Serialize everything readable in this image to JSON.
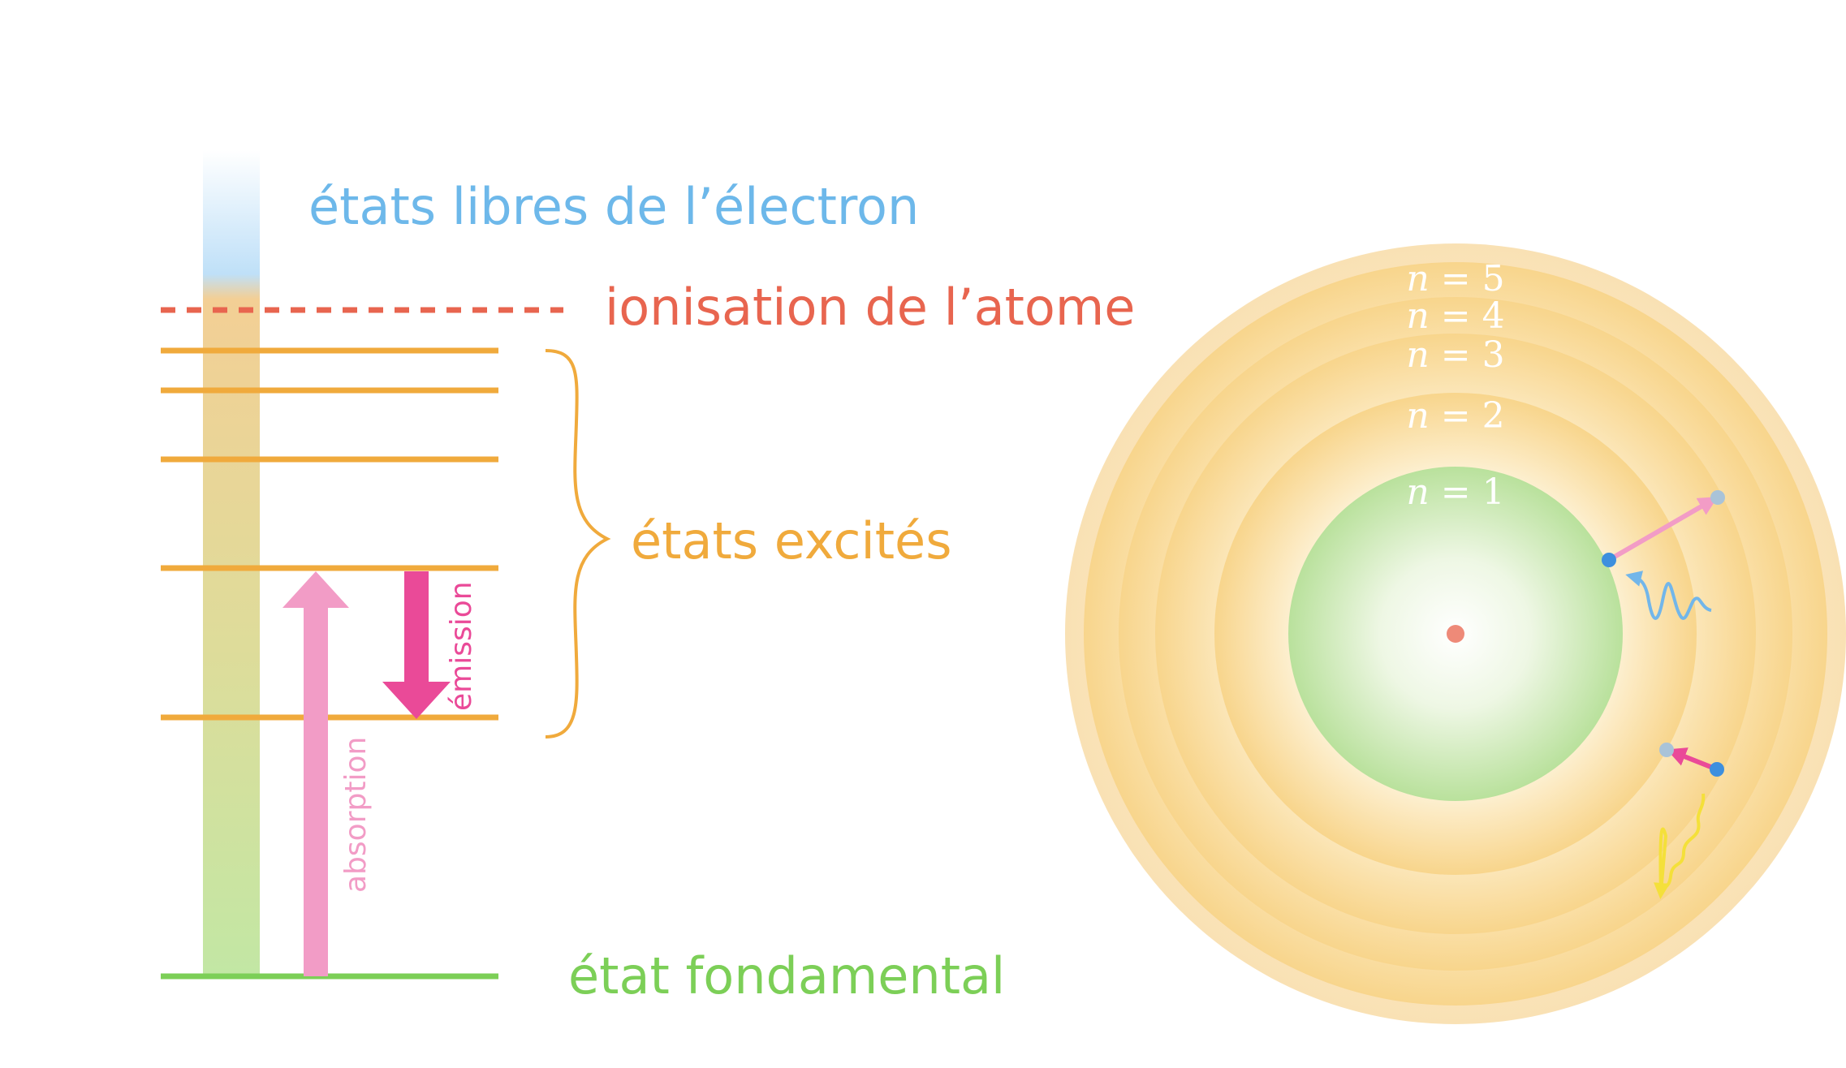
{
  "labels": {
    "free_states": "états libres de l’électron",
    "ionization": "ionisation de l’atome",
    "excited_states": "états excités",
    "ground_state": "état fondamental",
    "absorption": "absorption",
    "emission": "émission"
  },
  "shells": [
    {
      "var": "n",
      "value": "= 5"
    },
    {
      "var": "n",
      "value": "= 4"
    },
    {
      "var": "n",
      "value": "= 3"
    },
    {
      "var": "n",
      "value": "= 2"
    },
    {
      "var": "n",
      "value": "= 1"
    }
  ],
  "colors": {
    "free": "#6db8ea",
    "ionization": "#e8654f",
    "excited": "#f0aa3c",
    "ground": "#7ccf57",
    "absorption": "#f29cc6",
    "emission": "#ea4a98",
    "nucleus": "#ee8a78",
    "electron": "#3d8fde",
    "core": "#a8d890",
    "shell": "#f6cf7f",
    "photon_in": "#72b6ea",
    "photon_out": "#f4e03a"
  },
  "icons": {
    "nucleus": "red-dot",
    "electron": "blue-dot",
    "photon": "wavy-arrow"
  }
}
